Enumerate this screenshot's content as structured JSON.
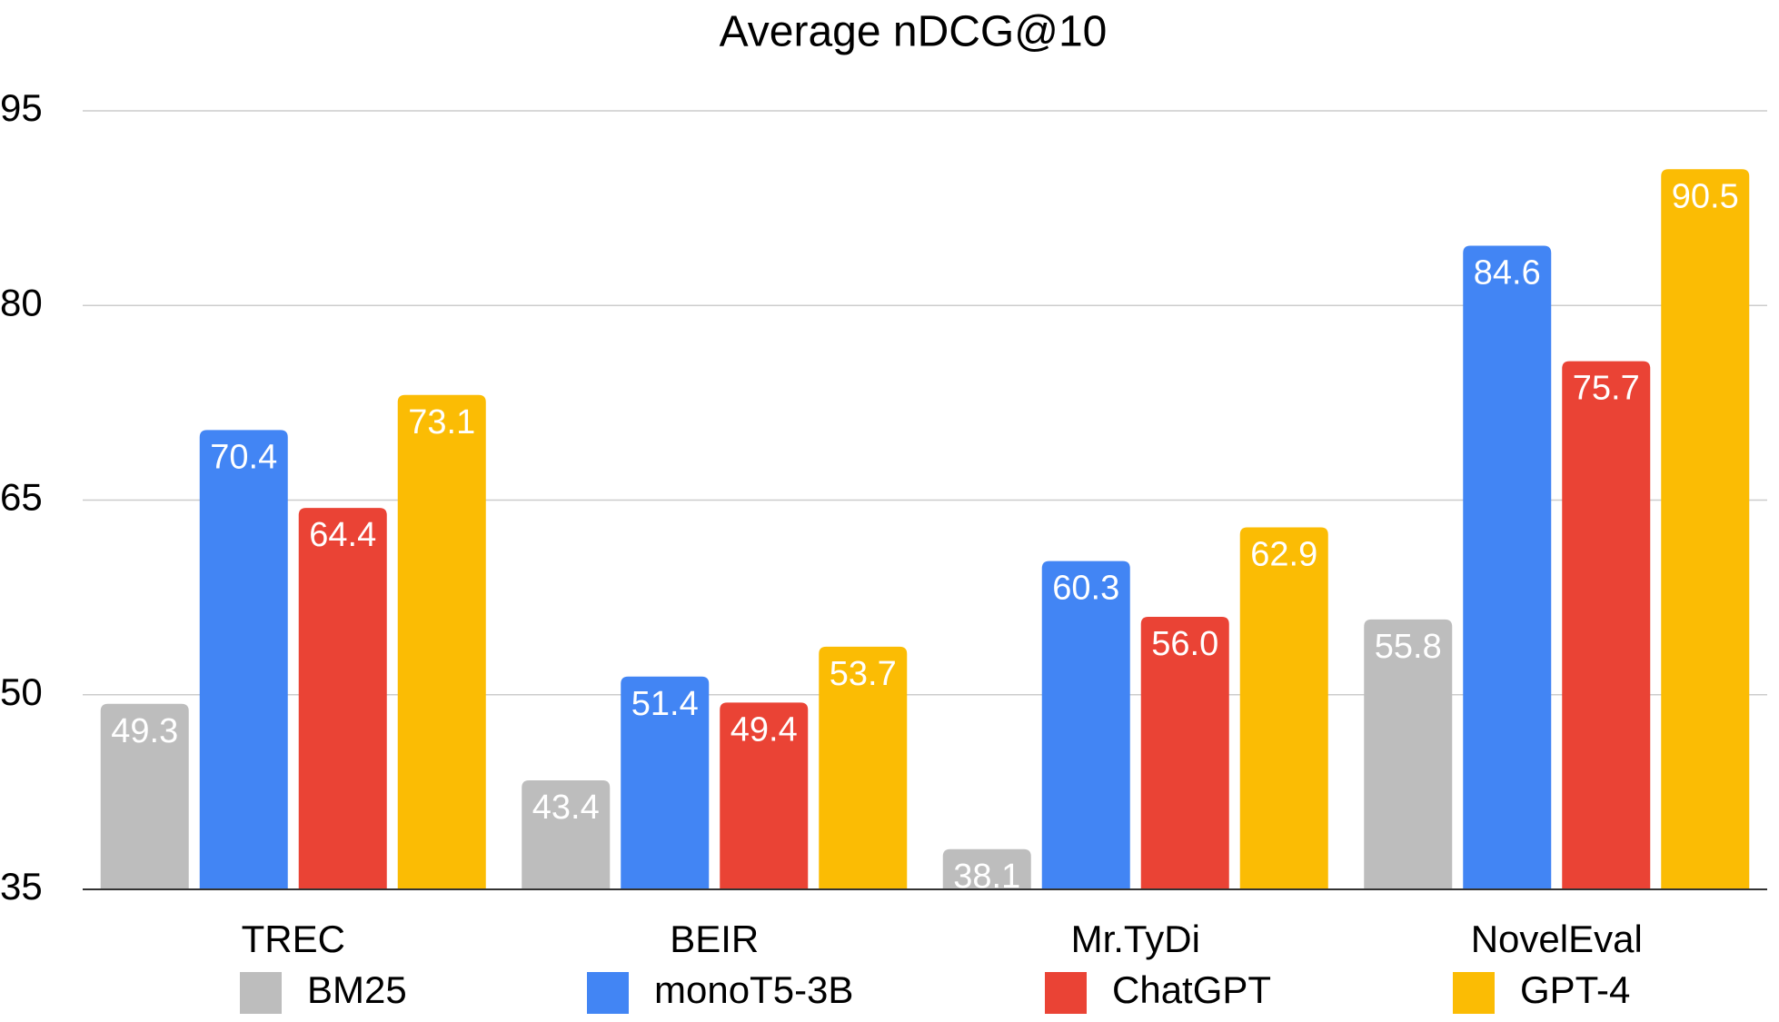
{
  "chart_data": {
    "type": "bar",
    "title": "Average nDCG@10",
    "categories": [
      "TREC",
      "BEIR",
      "Mr.TyDi",
      "NovelEval"
    ],
    "series": [
      {
        "name": "BM25",
        "color": "#bdbdbd",
        "values": [
          49.3,
          43.4,
          38.1,
          55.8
        ],
        "value_labels": [
          "49.3",
          "43.4",
          "38.1",
          "55.8"
        ]
      },
      {
        "name": "monoT5-3B",
        "color": "#4285f4",
        "values": [
          70.4,
          51.4,
          60.3,
          84.6
        ],
        "value_labels": [
          "70.4",
          "51.4",
          "60.3",
          "84.6"
        ]
      },
      {
        "name": "ChatGPT",
        "color": "#ea4335",
        "values": [
          64.4,
          49.4,
          56.0,
          75.7
        ],
        "value_labels": [
          "64.4",
          "49.4",
          "56.0",
          "75.7"
        ]
      },
      {
        "name": "GPT-4",
        "color": "#fbbc04",
        "values": [
          73.1,
          53.7,
          62.9,
          90.5
        ],
        "value_labels": [
          "73.1",
          "53.7",
          "62.9",
          "90.5"
        ]
      }
    ],
    "ylim": [
      35,
      95
    ],
    "yticks": [
      35,
      50,
      65,
      80,
      95
    ],
    "grid": true,
    "legend": "bottom"
  }
}
